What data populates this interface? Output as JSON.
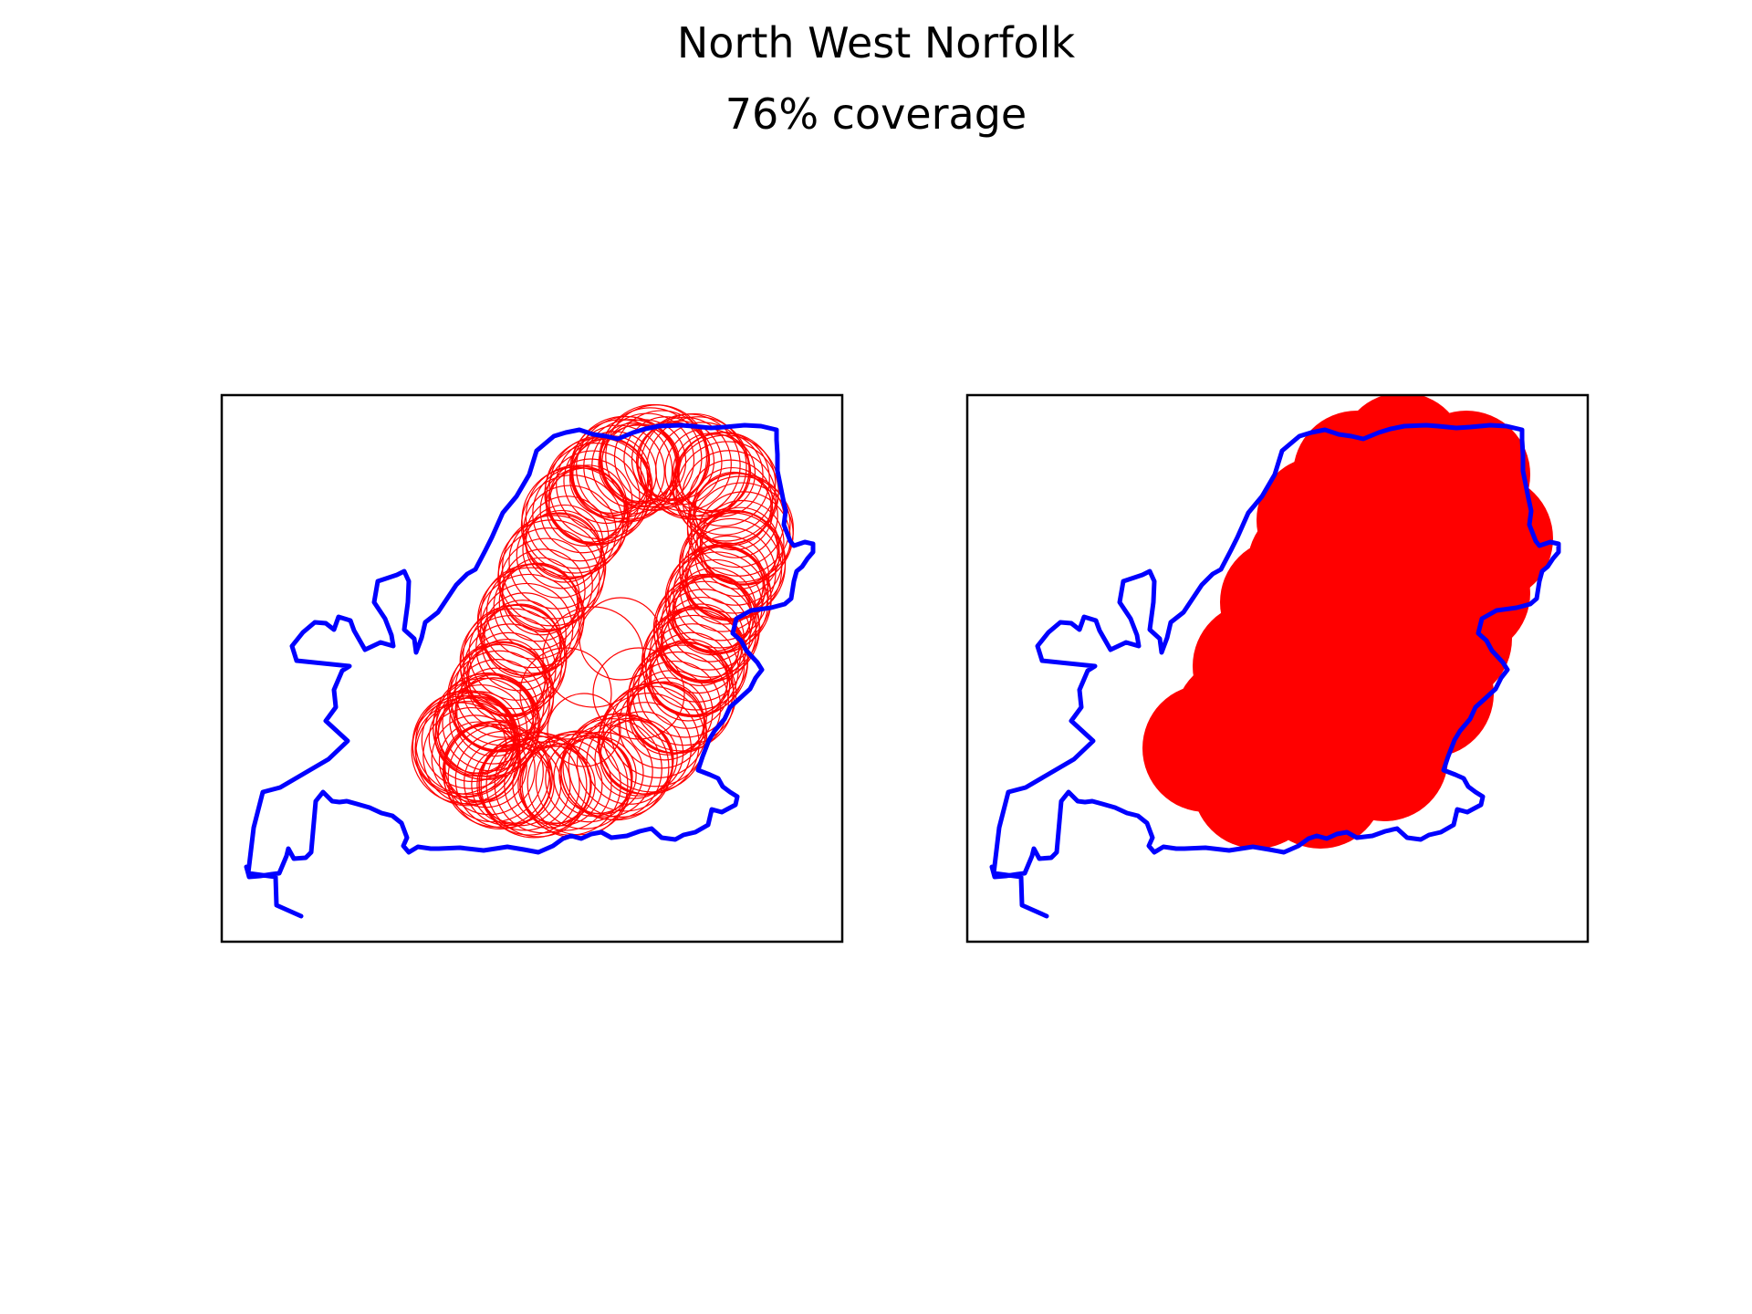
{
  "figure": {
    "title_line1": "North West Norfolk",
    "title_line2": "76% coverage"
  },
  "colors": {
    "boundary": "#0000ff",
    "coverage": "#ff0000",
    "frame": "#000000",
    "background": "#ffffff"
  },
  "chart_data": [
    {
      "type": "map",
      "panel": "left",
      "style": "outline circles",
      "grid": false,
      "ticks": false,
      "layers": [
        "constituency boundary",
        "coverage circles (outline)"
      ]
    },
    {
      "type": "map",
      "panel": "right",
      "style": "filled union",
      "grid": false,
      "ticks": false,
      "layers": [
        "constituency boundary",
        "coverage area (filled)"
      ]
    }
  ]
}
